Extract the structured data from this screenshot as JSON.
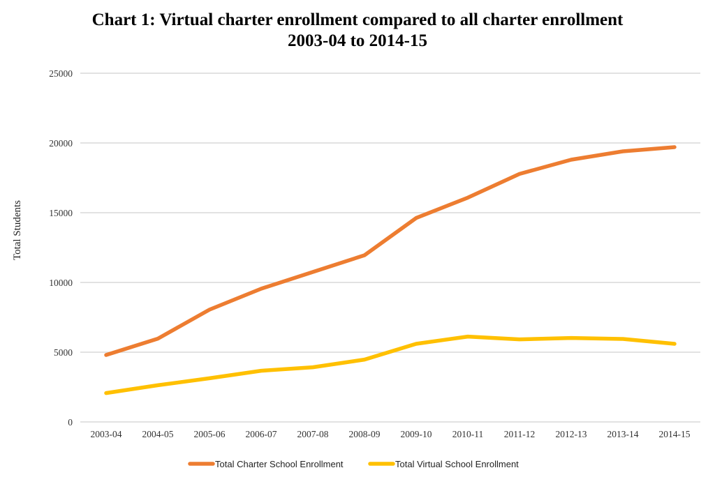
{
  "chart_data": {
    "type": "line",
    "title": "Chart 1: Virtual charter enrollment compared to all charter enrollment",
    "subtitle": "2003-04 to 2014-15",
    "xlabel": "",
    "ylabel": "Total Students",
    "ylim": [
      0,
      25000
    ],
    "yticks": [
      0,
      5000,
      10000,
      15000,
      20000,
      25000
    ],
    "grid": true,
    "legend_position": "bottom",
    "categories": [
      "2003-04",
      "2004-05",
      "2005-06",
      "2006-07",
      "2007-08",
      "2008-09",
      "2009-10",
      "2010-11",
      "2011-12",
      "2012-13",
      "2013-14",
      "2014-15"
    ],
    "series": [
      {
        "name": "Total Charter School Enrollment",
        "color": "#ED7D31",
        "values": [
          4800,
          5970,
          8050,
          9550,
          10750,
          11950,
          14620,
          16080,
          17780,
          18800,
          19400,
          19700
        ]
      },
      {
        "name": "Total Virtual School Enrollment",
        "color": "#FFC000",
        "values": [
          2070,
          2630,
          3130,
          3670,
          3920,
          4470,
          5600,
          6120,
          5920,
          6020,
          5950,
          5600
        ]
      }
    ]
  }
}
